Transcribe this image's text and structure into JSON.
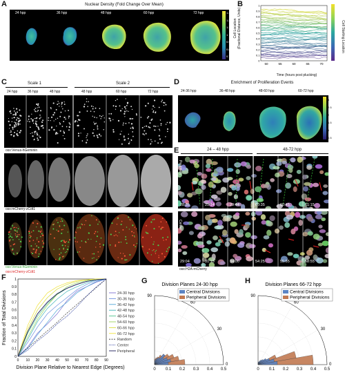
{
  "panels": {
    "A": {
      "label": "A",
      "title": "Nuclear Density (Fold Change Over Mean)",
      "timepoints": [
        "24 hpp",
        "36 hpp",
        "48 hpp",
        "60 hpp",
        "72 hpp"
      ],
      "colorbar_ticks": [
        "1.3",
        "1.2",
        "1.1",
        "1",
        "0.9",
        "0.8",
        "0.7"
      ]
    },
    "B": {
      "label": "B",
      "ylabel": "Cell Location\n(Fractional Distance, Units)",
      "xlabel": "Time (hours post plucking)",
      "cbar_label": "Cell Starting Location",
      "xticks": [
        "50",
        "55",
        "60",
        "65",
        "70"
      ],
      "yticks": [
        "0",
        "0.1",
        "0.2",
        "0.3",
        "0.4",
        "0.5",
        "0.6",
        "0.7",
        "0.8",
        "0.9",
        "1"
      ],
      "colors": {
        "low": "#5a2a8a",
        "mid": "#2aa7a0",
        "high": "#f2e02a"
      }
    },
    "C": {
      "label": "C",
      "scale1": "Scale 1",
      "scale2": "Scale 2",
      "timepoints": [
        "24 hpp",
        "36 hpp",
        "48 hpp",
        "48 hpp",
        "60 hpp",
        "72 hpp"
      ],
      "row1_label": "osx:Venus-hGeminin",
      "row2_label": "osx:mCherry-zCdt1",
      "row3_label_green": "osx:Venus-hGeminin",
      "row3_label_red": "osx:mCherry-zCdt1"
    },
    "D": {
      "label": "D",
      "title": "Enrichment of Proliferation Events",
      "timepoints": [
        "24-36 hpp",
        "36-48 hpp",
        "48-60 hpp",
        "60-72 hpp"
      ],
      "colorbar_ticks": [
        "3",
        "2.5",
        "2",
        "1.5",
        "1",
        "0.5"
      ]
    },
    "E": {
      "label": "E",
      "left_header": "24 – 48 hpp",
      "right_header": "48-72 hpp",
      "row_labels": [
        "Periphery",
        "Center"
      ],
      "periphery_times": [
        "28:35",
        "29:14",
        "29:44",
        "60:35",
        "60:45",
        "61:15"
      ],
      "center_times": [
        "29:04",
        "31:15",
        "34:00",
        "54:25",
        "55:55",
        "58:55"
      ],
      "bottom_label": "osx:H2A-mCherry"
    },
    "F": {
      "label": "F",
      "ylabel": "Fraction of Total Divisions",
      "xlabel": "Division Plane Relative to Nearest Edge (Degrees)",
      "xticks": [
        "0",
        "10",
        "20",
        "30",
        "40",
        "50",
        "60",
        "70",
        "80",
        "90"
      ],
      "yticks": [
        "0",
        "0.1",
        "0.2",
        "0.3",
        "0.4",
        "0.5",
        "0.6",
        "0.7",
        "0.8",
        "0.9",
        "1"
      ],
      "legend": [
        "24-30 hpp",
        "30-36 hpp",
        "36-42 hpp",
        "42-48 hpp",
        "48-54 hpp",
        "54-60 hpp",
        "60-66 hpp",
        "66-72 hpp",
        "Random",
        "Center",
        "Peripheral"
      ]
    },
    "G": {
      "label": "G",
      "title": "Division Planes 24-30 hpp",
      "legend": [
        "Central Divisions",
        "Peripheral Divisions"
      ],
      "angle_ticks": [
        "90",
        "60",
        "30",
        "0"
      ],
      "radial_ticks": [
        "0",
        "0.1",
        "0.2",
        "0.3",
        "0.4",
        "0.5"
      ]
    },
    "H": {
      "label": "H",
      "title": "Division Planes 66-72 hpp",
      "legend": [
        "Central Divisions",
        "Peripheral Divisions"
      ],
      "angle_ticks": [
        "90",
        "60",
        "30",
        "0"
      ],
      "radial_ticks": [
        "0",
        "0.1",
        "0.2",
        "0.3",
        "0.4",
        "0.5"
      ]
    }
  },
  "chart_data": [
    {
      "type": "line",
      "panel": "F",
      "xlabel": "Division Plane Relative to Nearest Edge (Degrees)",
      "ylabel": "Fraction of Total Divisions",
      "xlim": [
        0,
        90
      ],
      "ylim": [
        0,
        1
      ],
      "x": [
        0,
        10,
        20,
        30,
        40,
        50,
        60,
        70,
        80,
        90
      ],
      "series": [
        {
          "name": "24-30 hpp",
          "color": "#7b6fd0",
          "values": [
            0,
            0.12,
            0.3,
            0.42,
            0.55,
            0.72,
            0.84,
            0.9,
            0.96,
            1
          ]
        },
        {
          "name": "30-36 hpp",
          "color": "#6c8fe0",
          "values": [
            0,
            0.18,
            0.38,
            0.55,
            0.66,
            0.76,
            0.86,
            0.93,
            0.98,
            1
          ]
        },
        {
          "name": "36-42 hpp",
          "color": "#4fa6d6",
          "values": [
            0,
            0.1,
            0.28,
            0.44,
            0.6,
            0.7,
            0.82,
            0.9,
            0.97,
            1
          ]
        },
        {
          "name": "42-48 hpp",
          "color": "#3fb3b8",
          "values": [
            0,
            0.22,
            0.45,
            0.62,
            0.74,
            0.84,
            0.9,
            0.95,
            0.99,
            1
          ]
        },
        {
          "name": "48-54 hpp",
          "color": "#4fc48e",
          "values": [
            0,
            0.3,
            0.52,
            0.68,
            0.8,
            0.88,
            0.93,
            0.97,
            0.99,
            1
          ]
        },
        {
          "name": "54-60 hpp",
          "color": "#9ad35a",
          "values": [
            0,
            0.25,
            0.48,
            0.66,
            0.8,
            0.9,
            0.95,
            0.98,
            1,
            1
          ]
        },
        {
          "name": "60-66 hpp",
          "color": "#d7dc3a",
          "values": [
            0,
            0.35,
            0.6,
            0.76,
            0.87,
            0.93,
            0.97,
            0.99,
            1,
            1
          ]
        },
        {
          "name": "66-72 hpp",
          "color": "#f0e23a",
          "values": [
            0,
            0.4,
            0.66,
            0.82,
            0.9,
            0.95,
            0.98,
            0.99,
            1,
            1
          ]
        },
        {
          "name": "Random",
          "color": "#333333",
          "values": [
            0,
            0.11,
            0.22,
            0.33,
            0.44,
            0.56,
            0.67,
            0.78,
            0.89,
            1
          ]
        },
        {
          "name": "Center",
          "color": "#2d3f9e",
          "values": [
            0,
            0.08,
            0.2,
            0.3,
            0.42,
            0.52,
            0.64,
            0.78,
            0.9,
            1
          ]
        },
        {
          "name": "Peripheral",
          "color": "#1a1a5a",
          "values": [
            0,
            0.32,
            0.55,
            0.7,
            0.81,
            0.88,
            0.93,
            0.97,
            0.99,
            1
          ]
        }
      ]
    },
    {
      "type": "bar",
      "panel": "G",
      "subtype": "polar-histogram",
      "title": "Division Planes 24-30 hpp",
      "rlim": [
        0,
        0.5
      ],
      "categories": [
        "0-10",
        "10-20",
        "20-30",
        "30-40",
        "40-50",
        "50-60",
        "60-70",
        "70-80",
        "80-90"
      ],
      "series": [
        {
          "name": "Central Divisions",
          "color": "#5b84c4",
          "values": [
            0.1,
            0.12,
            0.1,
            0.08,
            0.1,
            0.06,
            0.05,
            0.04,
            0.03
          ]
        },
        {
          "name": "Peripheral Divisions",
          "color": "#c27a52",
          "values": [
            0.22,
            0.18,
            0.15,
            0.12,
            0.1,
            0.08,
            0.06,
            0.05,
            0.04
          ]
        }
      ]
    },
    {
      "type": "bar",
      "panel": "H",
      "subtype": "polar-histogram",
      "title": "Division Planes 66-72 hpp",
      "rlim": [
        0,
        0.5
      ],
      "categories": [
        "0-10",
        "10-20",
        "20-30",
        "30-40",
        "40-50",
        "50-60",
        "60-70",
        "70-80",
        "80-90"
      ],
      "series": [
        {
          "name": "Central Divisions",
          "color": "#5b84c4",
          "values": [
            0.14,
            0.12,
            0.09,
            0.07,
            0.05,
            0.04,
            0.03,
            0.02,
            0.02
          ]
        },
        {
          "name": "Peripheral Divisions",
          "color": "#c27a52",
          "values": [
            0.4,
            0.28,
            0.14,
            0.06,
            0.04,
            0.03,
            0.02,
            0.01,
            0.01
          ]
        }
      ]
    }
  ]
}
